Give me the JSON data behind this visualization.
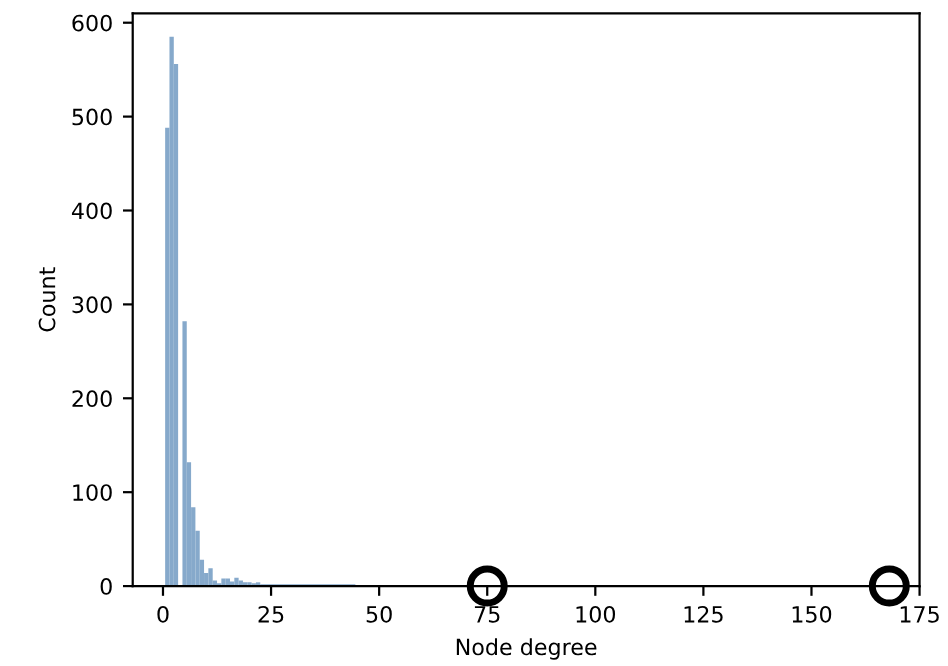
{
  "chart_data": {
    "type": "histogram",
    "xlabel": "Node degree",
    "ylabel": "Count",
    "bins": [
      0.5,
      1.5,
      2.5,
      3.5,
      4.5,
      5.5,
      6.5,
      7.5,
      8.5,
      9.5,
      10.5,
      11.5,
      12.5,
      13.5,
      14.5,
      15.5,
      16.5,
      17.5,
      18.5,
      19.5,
      20.5,
      21.5,
      22.5,
      44.5,
      74.5,
      75.5,
      167.5,
      168.5
    ],
    "values": [
      488,
      585,
      556,
      0,
      282,
      132,
      84,
      59,
      28,
      14,
      19,
      6,
      3,
      8,
      8,
      5,
      9,
      6,
      4,
      4,
      3,
      4,
      2,
      0,
      1,
      0,
      1
    ],
    "color": "#86a9cb",
    "xlim": [
      -7,
      175
    ],
    "ylim": [
      0,
      610
    ],
    "xticks": [
      0,
      25,
      50,
      75,
      100,
      125,
      150,
      175
    ],
    "yticks": [
      0,
      100,
      200,
      300,
      400,
      500,
      600
    ],
    "grid": false
  }
}
